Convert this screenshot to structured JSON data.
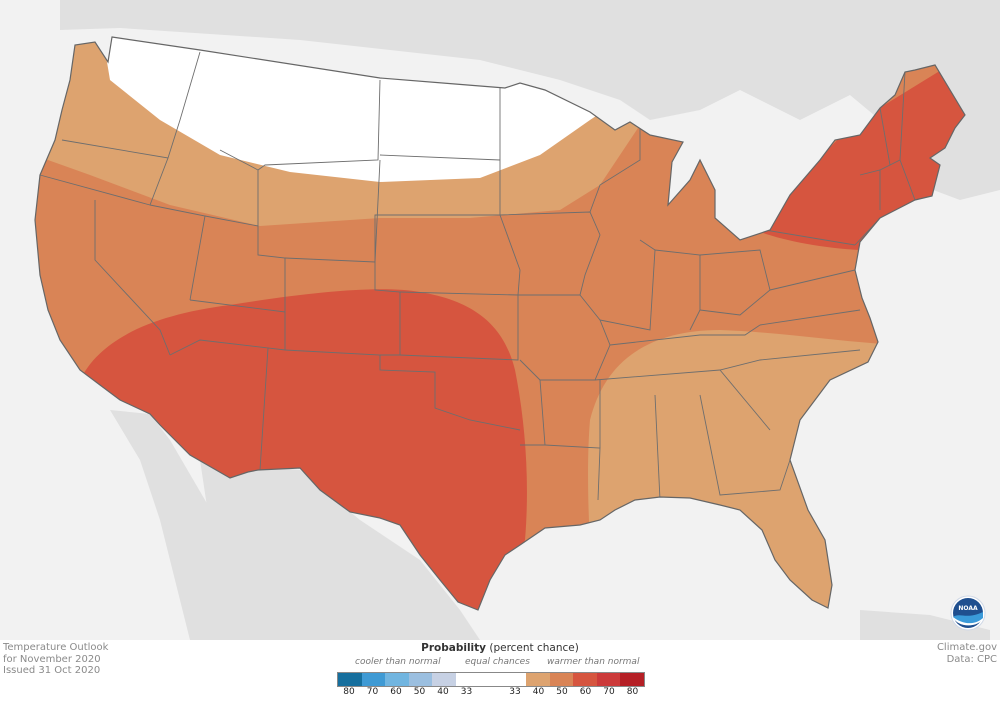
{
  "map": {
    "background_color": "#f2f2f2",
    "land_color": "#e0e0e0",
    "border_color": "#666666",
    "regions": [
      {
        "name": "equal chances",
        "category": "EC",
        "color": "#ffffff"
      },
      {
        "name": "warmer 33-40",
        "category": "above 33-40",
        "color": "#dda36f"
      },
      {
        "name": "warmer 40-50",
        "category": "above 40-50",
        "color": "#d98456"
      },
      {
        "name": "warmer 50-60",
        "category": "above 50-60",
        "color": "#d6553f"
      }
    ],
    "logo": {
      "text": "NOAA",
      "color": "#1f4f8f"
    }
  },
  "info": {
    "title_line1": "Temperature Outlook",
    "title_line2": "for November 2020",
    "issued": "Issued 31 Oct 2020",
    "source_line1": "Climate.gov",
    "source_line2": "Data: CPC"
  },
  "legend": {
    "title_bold": "Probability",
    "title_rest": " (percent chance)",
    "cooler_label": "cooler than normal",
    "equal_label": "equal chances",
    "warmer_label": "warmer than normal",
    "swatches": [
      {
        "color": "#166f9e",
        "w": 1
      },
      {
        "color": "#3f9ad4",
        "w": 1
      },
      {
        "color": "#71b5e0",
        "w": 1
      },
      {
        "color": "#9bbfe0",
        "w": 1
      },
      {
        "color": "#c7d1e4",
        "w": 1
      },
      {
        "color": "#ffffff",
        "w": 3
      },
      {
        "color": "#dda36f",
        "w": 1
      },
      {
        "color": "#d98456",
        "w": 1
      },
      {
        "color": "#d6553f",
        "w": 1
      },
      {
        "color": "#cc3a3a",
        "w": 1
      },
      {
        "color": "#b51f25",
        "w": 1
      }
    ],
    "ticks": [
      "80",
      "70",
      "60",
      "50",
      "40",
      "33",
      "33",
      "40",
      "50",
      "60",
      "70",
      "80"
    ]
  }
}
